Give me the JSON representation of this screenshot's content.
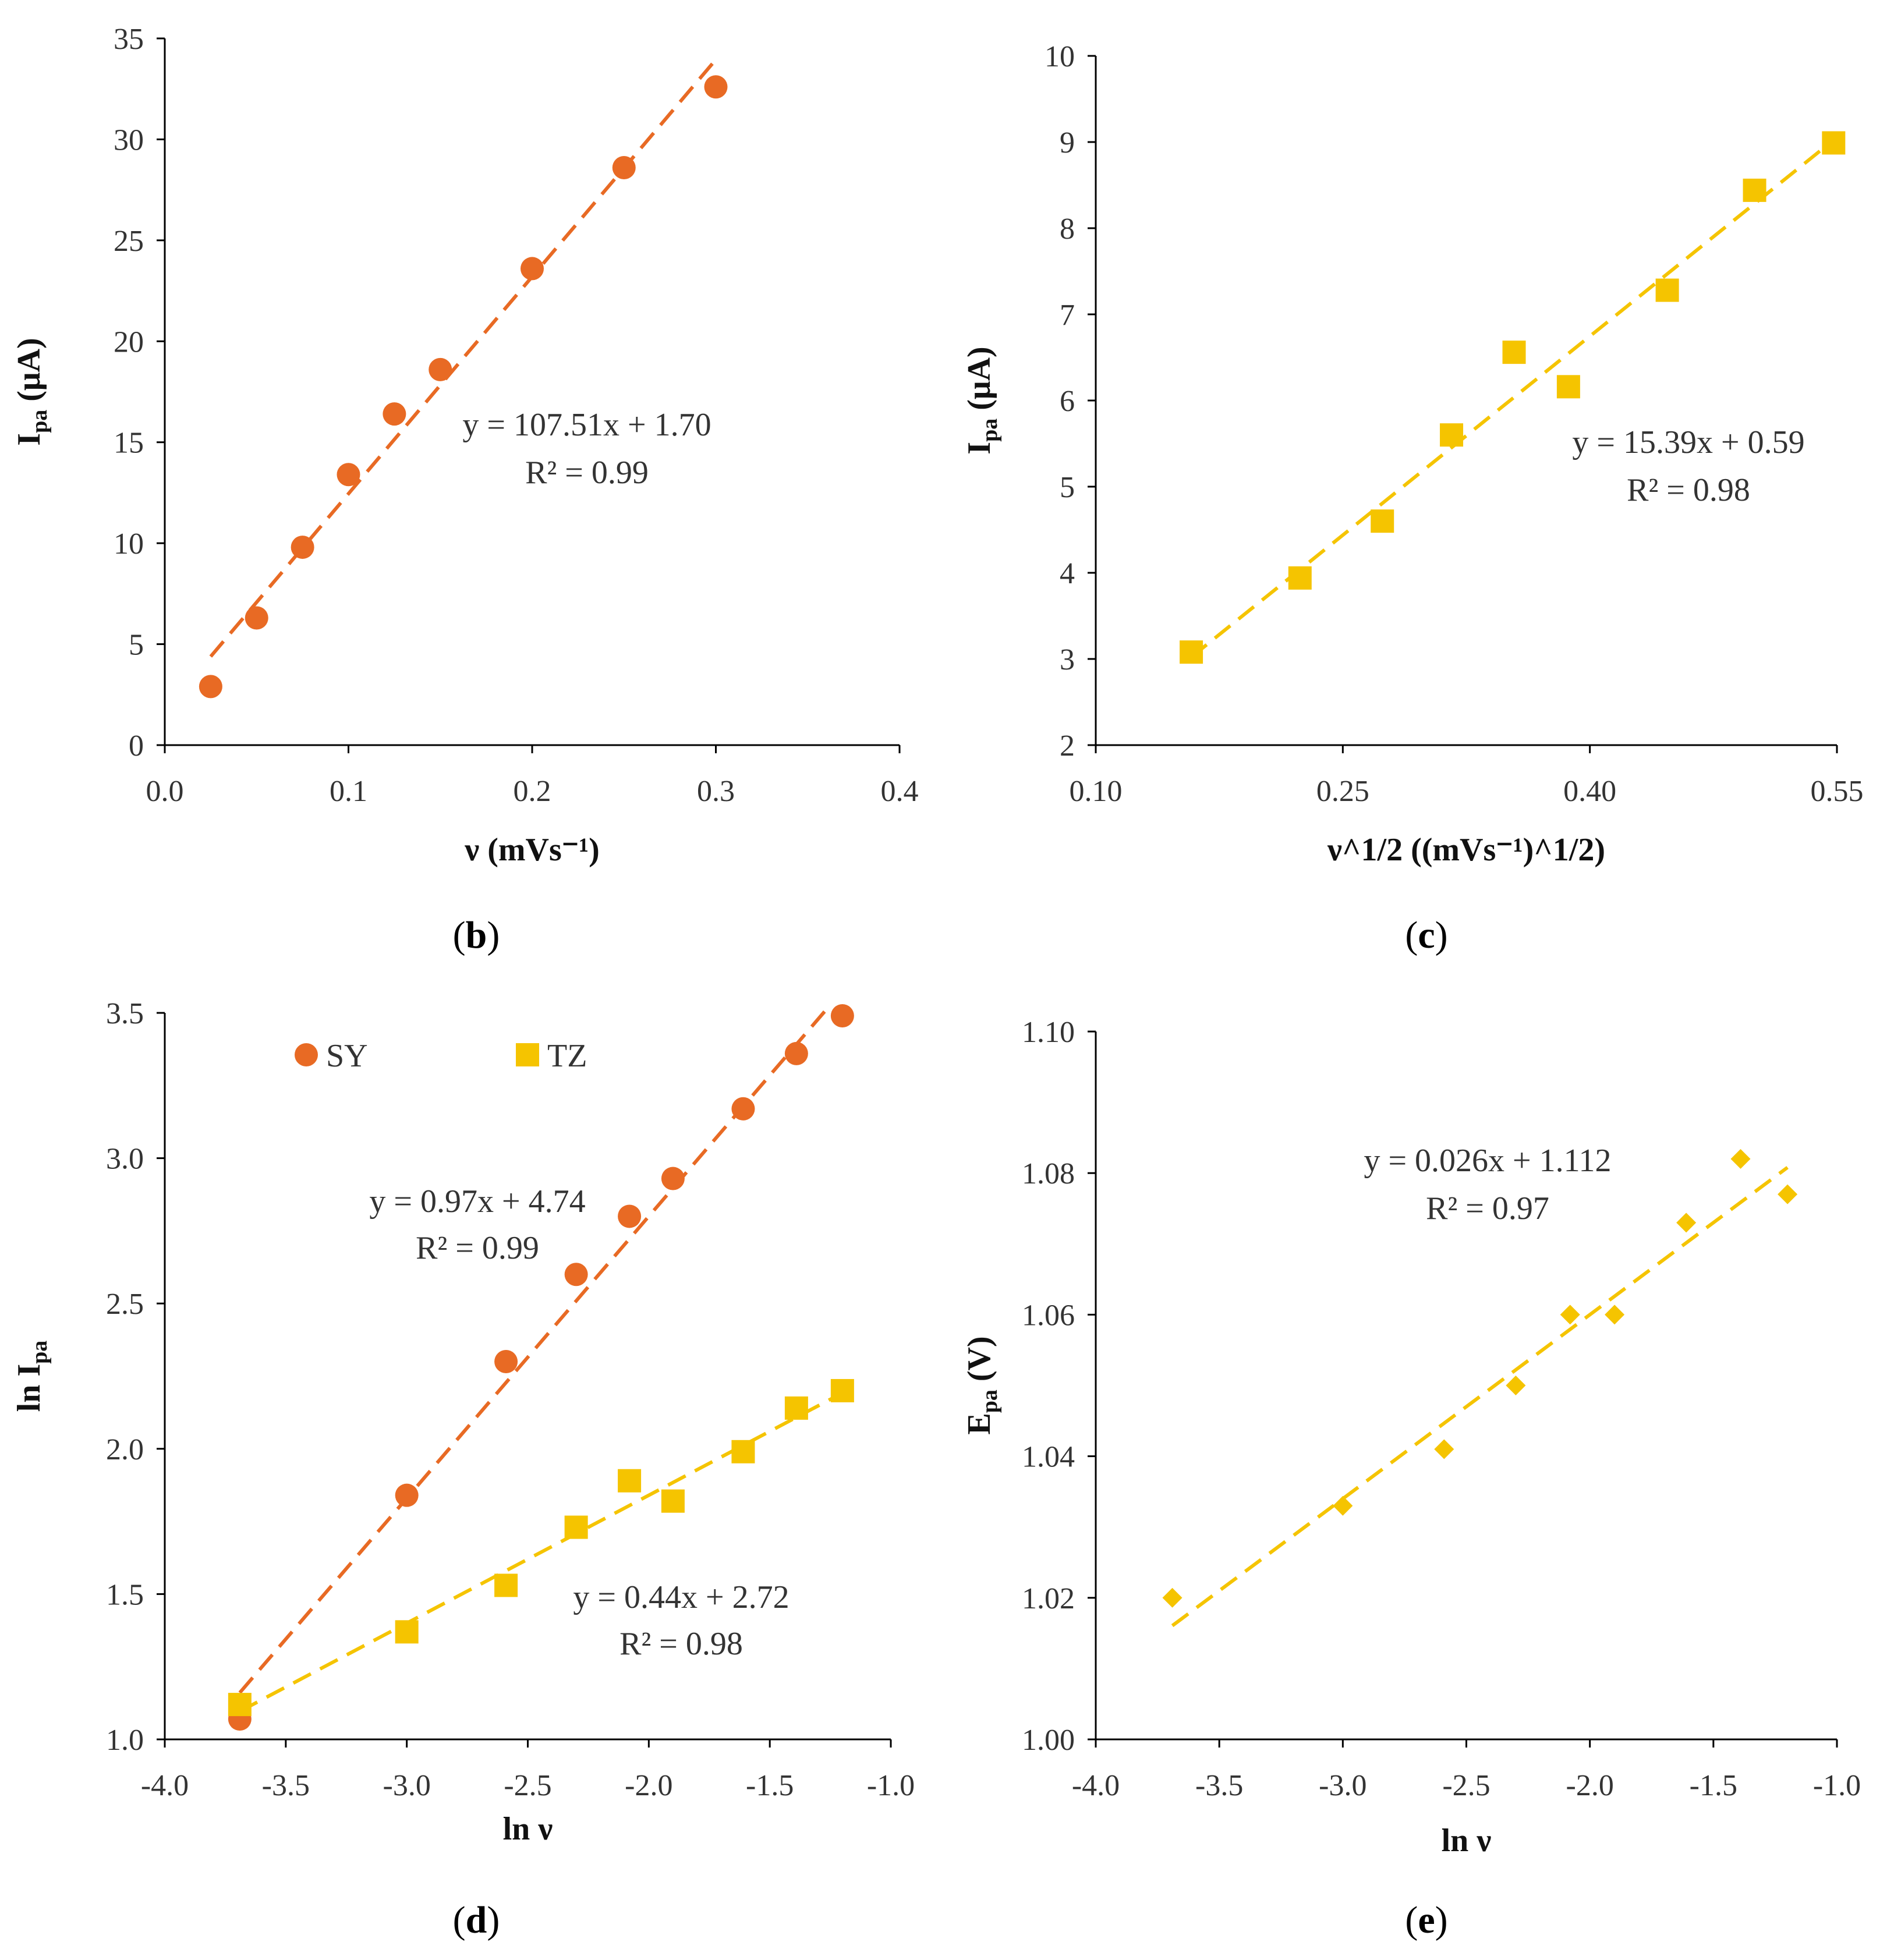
{
  "colors": {
    "orange": "#E86A24",
    "yellow": "#F5C400",
    "axis": "#000000"
  },
  "chart_data": [
    {
      "panel_id": "b",
      "type": "scatter",
      "xlabel": "ν (mVs⁻¹)",
      "ylabel": "Ipa (μA)",
      "xlim": [
        0,
        0.4
      ],
      "ylim": [
        0,
        35
      ],
      "xticks": [
        "0.0",
        "0.1",
        "0.2",
        "0.3",
        "0.4"
      ],
      "yticks": [
        "0",
        "5",
        "10",
        "15",
        "20",
        "25",
        "30",
        "35"
      ],
      "series": [
        {
          "name": "SY",
          "marker": "circle",
          "color": "#E86A24",
          "x": [
            0.025,
            0.05,
            0.075,
            0.1,
            0.125,
            0.15,
            0.2,
            0.25,
            0.3
          ],
          "y": [
            2.9,
            6.3,
            9.8,
            13.4,
            16.4,
            18.6,
            23.6,
            28.6,
            32.6
          ],
          "trendline": {
            "slope": 107.51,
            "intercept": 1.7,
            "x_range": [
              0.025,
              0.3
            ]
          },
          "equation": "y = 107.51x + 1.70",
          "r2": "R² = 0.99"
        }
      ],
      "panel_label": "b"
    },
    {
      "panel_id": "c",
      "type": "scatter",
      "xlabel": "ν^1/2 ((mVs⁻¹)^1/2)",
      "ylabel": "Ipa (μA)",
      "xlim": [
        0.1,
        0.55
      ],
      "ylim": [
        2,
        10
      ],
      "xticks": [
        "0.10",
        "0.25",
        "0.40",
        "0.55"
      ],
      "yticks": [
        "2",
        "3",
        "4",
        "5",
        "6",
        "7",
        "8",
        "9",
        "10"
      ],
      "series": [
        {
          "name": "TZ",
          "marker": "square",
          "color": "#F5C400",
          "x": [
            0.158,
            0.224,
            0.274,
            0.316,
            0.354,
            0.387,
            0.447,
            0.5,
            0.548
          ],
          "y": [
            3.08,
            3.94,
            4.6,
            5.6,
            6.56,
            6.16,
            7.28,
            8.44,
            8.99
          ],
          "trendline": {
            "slope": 15.39,
            "intercept": 0.59,
            "x_range": [
              0.158,
              0.548
            ]
          },
          "equation": "y = 15.39x + 0.59",
          "r2": "R² = 0.98"
        }
      ],
      "panel_label": "c"
    },
    {
      "panel_id": "d",
      "type": "scatter",
      "xlabel": "ln ν",
      "ylabel": "ln Ipa",
      "xlim": [
        -4.0,
        -1.0
      ],
      "ylim": [
        1.0,
        3.5
      ],
      "xticks": [
        "-4.0",
        "-3.5",
        "-3.0",
        "-2.5",
        "-2.0",
        "-1.5",
        "-1.0"
      ],
      "yticks": [
        "1.0",
        "1.5",
        "2.0",
        "2.5",
        "3.0",
        "3.5"
      ],
      "legend": {
        "position": "top-left",
        "entries": [
          "SY",
          "TZ"
        ]
      },
      "series": [
        {
          "name": "SY",
          "marker": "circle",
          "color": "#E86A24",
          "x": [
            -3.69,
            -3.0,
            -2.59,
            -2.3,
            -2.08,
            -1.9,
            -1.61,
            -1.39,
            -1.2
          ],
          "y": [
            1.07,
            1.84,
            2.3,
            2.6,
            2.8,
            2.93,
            3.17,
            3.36,
            3.49
          ],
          "trendline": {
            "slope": 0.97,
            "intercept": 4.74,
            "x_range": [
              -3.69,
              -1.25
            ]
          },
          "equation": "y = 0.97x + 4.74",
          "r2": "R² = 0.99"
        },
        {
          "name": "TZ",
          "marker": "square",
          "color": "#F5C400",
          "x": [
            -3.69,
            -3.0,
            -2.59,
            -2.3,
            -2.08,
            -1.9,
            -1.61,
            -1.39,
            -1.2
          ],
          "y": [
            1.12,
            1.37,
            1.53,
            1.73,
            1.89,
            1.82,
            1.99,
            2.14,
            2.2
          ],
          "trendline": {
            "slope": 0.44,
            "intercept": 2.72,
            "x_range": [
              -3.69,
              -1.2
            ]
          },
          "equation": "y = 0.44x + 2.72",
          "r2": "R² = 0.98"
        }
      ],
      "panel_label": "d"
    },
    {
      "panel_id": "e",
      "type": "scatter",
      "xlabel": "ln ν",
      "ylabel": "Epa (V)",
      "xlim": [
        -4.0,
        -1.0
      ],
      "ylim": [
        1.0,
        1.1
      ],
      "xticks": [
        "-4.0",
        "-3.5",
        "-3.0",
        "-2.5",
        "-2.0",
        "-1.5",
        "-1.0"
      ],
      "yticks": [
        "1.00",
        "1.02",
        "1.04",
        "1.06",
        "1.08",
        "1.10"
      ],
      "series": [
        {
          "name": "TZ",
          "marker": "diamond",
          "color": "#F5C400",
          "x": [
            -3.69,
            -3.0,
            -2.59,
            -2.3,
            -2.08,
            -1.9,
            -1.61,
            -1.39,
            -1.2
          ],
          "y": [
            1.02,
            1.033,
            1.041,
            1.05,
            1.06,
            1.06,
            1.073,
            1.082,
            1.077
          ],
          "trendline": {
            "slope": 0.026,
            "intercept": 1.112,
            "x_range": [
              -3.69,
              -1.2
            ]
          },
          "equation": "y = 0.026x + 1.112",
          "r2": "R² = 0.97"
        }
      ],
      "panel_label": "e"
    }
  ]
}
